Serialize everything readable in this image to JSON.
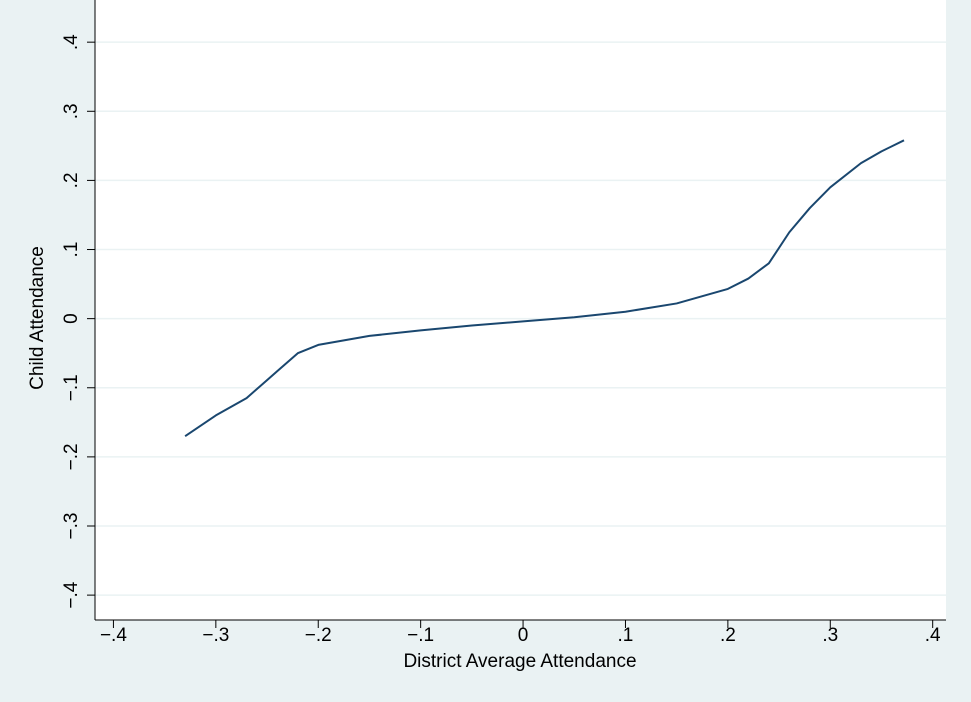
{
  "chart_data": {
    "type": "line",
    "x_label": "District Average Attendance",
    "y_label": "Child Attendance",
    "x": [
      -0.33,
      -0.3,
      -0.27,
      -0.24,
      -0.22,
      -0.2,
      -0.15,
      -0.1,
      -0.05,
      0,
      0.05,
      0.1,
      0.15,
      0.2,
      0.22,
      0.24,
      0.26,
      0.28,
      0.3,
      0.33,
      0.35,
      0.372
    ],
    "series": [
      {
        "color": "#1a476f",
        "values": [
          -0.17,
          -0.14,
          -0.115,
          -0.076,
          -0.05,
          -0.038,
          -0.025,
          -0.017,
          -0.01,
          -0.004,
          0.002,
          0.01,
          0.022,
          0.043,
          0.058,
          0.08,
          0.125,
          0.16,
          0.19,
          0.225,
          0.242,
          0.258
        ]
      }
    ],
    "xlim": [
      -0.418,
      0.413
    ],
    "ylim": [
      -0.436,
      0.461
    ],
    "xticks": [
      {
        "value": -0.4,
        "label": "−.4"
      },
      {
        "value": -0.3,
        "label": "−.3"
      },
      {
        "value": -0.2,
        "label": "−.2"
      },
      {
        "value": -0.1,
        "label": "−.1"
      },
      0,
      {
        "value": 0.1,
        "label": ".1"
      },
      {
        "value": 0.2,
        "label": ".2"
      },
      {
        "value": 0.3,
        "label": ".3"
      },
      {
        "value": 0.4,
        "label": ".4"
      }
    ],
    "yticks": [
      {
        "value": -0.4,
        "label": "−.4"
      },
      {
        "value": -0.3,
        "label": "−.3"
      },
      {
        "value": -0.2,
        "label": "−.2"
      },
      {
        "value": -0.1,
        "label": "−.1"
      },
      0,
      {
        "value": 0.1,
        "label": ".1"
      },
      {
        "value": 0.2,
        "label": ".2"
      },
      {
        "value": 0.3,
        "label": ".3"
      },
      {
        "value": 0.4,
        "label": ".4"
      }
    ],
    "grid": true
  }
}
